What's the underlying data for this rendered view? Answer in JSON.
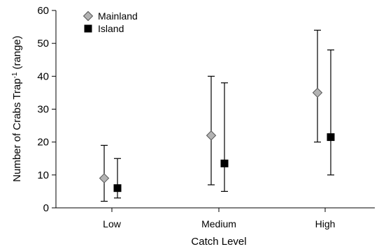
{
  "chart_data": {
    "type": "scatter",
    "categories": [
      "Low",
      "Medium",
      "High"
    ],
    "xlabel": "Catch Level",
    "ylabel": {
      "main": "Number of Crabs Trap",
      "superscript": "-1",
      "suffix": "(range)"
    },
    "ylim": [
      0,
      60
    ],
    "yticks": [
      0,
      10,
      20,
      30,
      40,
      50,
      60
    ],
    "grid": false,
    "legend_position": "top-left",
    "series": [
      {
        "name": "Mainland",
        "marker": "diamond",
        "color": "#b3b3b3",
        "values": [
          9,
          22,
          35
        ],
        "range_low": [
          2,
          7,
          20
        ],
        "range_high": [
          19,
          40,
          54
        ]
      },
      {
        "name": "Island",
        "marker": "square",
        "color": "#000000",
        "values": [
          6,
          13.5,
          21.5
        ],
        "range_low": [
          3,
          5,
          10
        ],
        "range_high": [
          15,
          38,
          48
        ]
      }
    ]
  }
}
